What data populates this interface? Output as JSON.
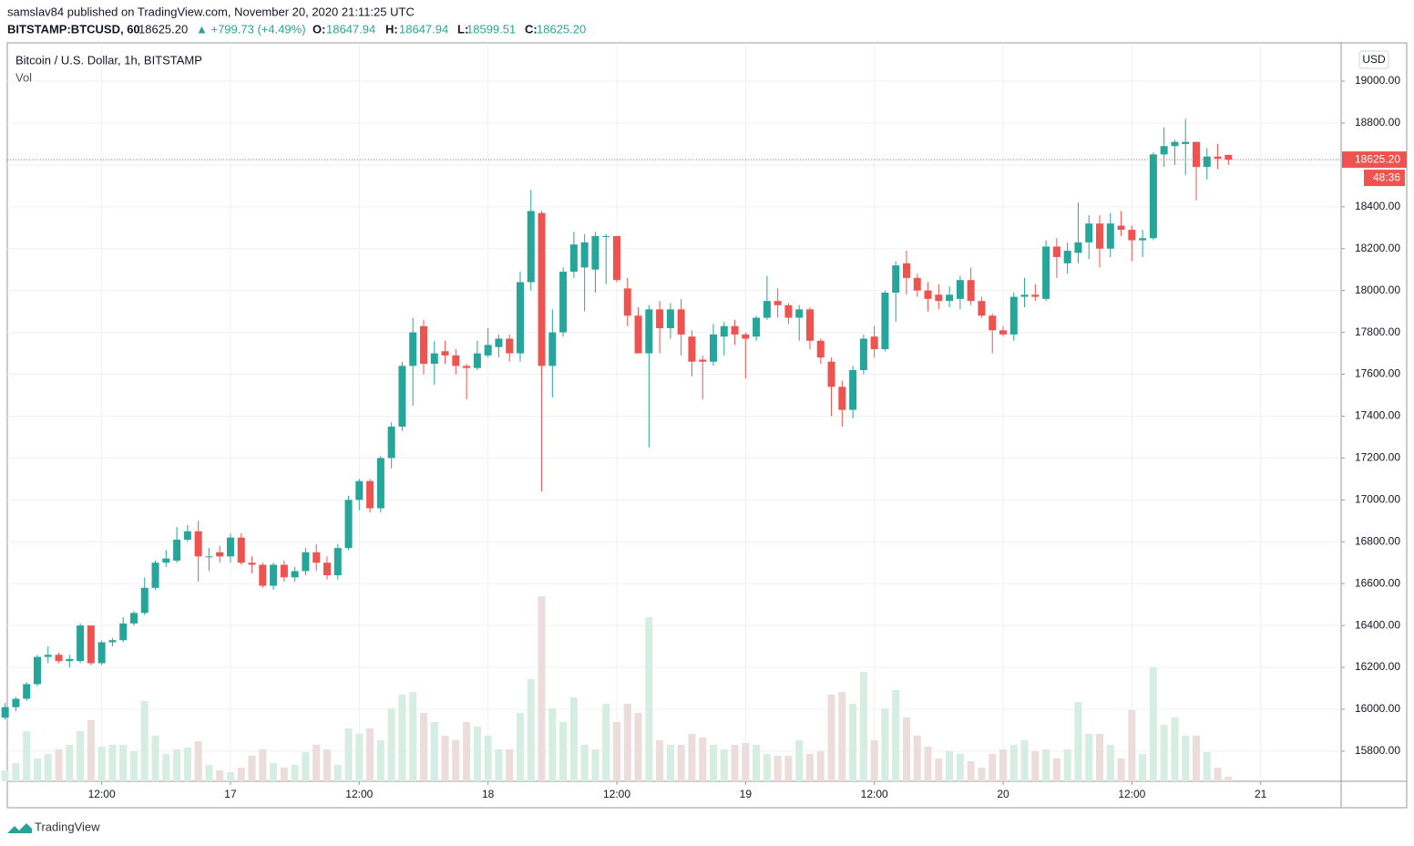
{
  "header": {
    "publisher": "samslav84 published on TradingView.com, November 20, 2020 21:11:25 UTC",
    "symbol": "BITSTAMP:BTCUSD, 60",
    "price": "18625.20",
    "change": "▲ +799.73 (+4.49%)",
    "o_label": "O:",
    "o": "18647.94",
    "h_label": "H:",
    "h": "18647.94",
    "l_label": "L:",
    "l": "18599.51",
    "c_label": "C:",
    "c": "18625.20"
  },
  "legend": {
    "title": "Bitcoin / U.S. Dollar, 1h, BITSTAMP",
    "vol": "Vol",
    "currency": "USD"
  },
  "footer": {
    "brand": "TradingView"
  },
  "chart_data": {
    "type": "candlestick",
    "up_color": "#26a69a",
    "down_color": "#ef5350",
    "volume_up_color": "#d5ede3",
    "volume_down_color": "#eddcdc",
    "grid": true,
    "xlim": [
      0.2,
      124.5
    ],
    "ylim": [
      15656,
      19183
    ],
    "xticks": [
      {
        "value": 9,
        "label": "12:00"
      },
      {
        "value": 21,
        "label": "17"
      },
      {
        "value": 33,
        "label": "12:00"
      },
      {
        "value": 45,
        "label": "18"
      },
      {
        "value": 57,
        "label": "12:00"
      },
      {
        "value": 69,
        "label": "19"
      },
      {
        "value": 81,
        "label": "12:00"
      },
      {
        "value": 93,
        "label": "20"
      },
      {
        "value": 105,
        "label": "12:00"
      },
      {
        "value": 117,
        "label": "21"
      }
    ],
    "yticks": [
      {
        "value": 15800,
        "label": "15800.00"
      },
      {
        "value": 16000,
        "label": "16000.00"
      },
      {
        "value": 16200,
        "label": "16200.00"
      },
      {
        "value": 16400,
        "label": "16400.00"
      },
      {
        "value": 16600,
        "label": "16600.00"
      },
      {
        "value": 16800,
        "label": "16800.00"
      },
      {
        "value": 17000,
        "label": "17000.00"
      },
      {
        "value": 17200,
        "label": "17200.00"
      },
      {
        "value": 17400,
        "label": "17400.00"
      },
      {
        "value": 17600,
        "label": "17600.00"
      },
      {
        "value": 17800,
        "label": "17800.00"
      },
      {
        "value": 18000,
        "label": "18000.00"
      },
      {
        "value": 18200,
        "label": "18200.00"
      },
      {
        "value": 18400,
        "label": "18400.00"
      },
      {
        "value": 18600,
        "label": "18600.00"
      },
      {
        "value": 18800,
        "label": "18800.00"
      },
      {
        "value": 19000,
        "label": "19000.00"
      }
    ],
    "last_price": {
      "value": 18625.2,
      "label": "18625.20",
      "countdown": "48:36"
    },
    "open": [
      15960,
      16010,
      16050,
      16120,
      16250,
      16260,
      16230,
      16230,
      16400,
      16220,
      16320,
      16330,
      16410,
      16460,
      16580,
      16700,
      16710,
      16810,
      16850,
      16730,
      16750,
      16730,
      16820,
      16700,
      16690,
      16590,
      16690,
      16630,
      16660,
      16750,
      16700,
      16640,
      16770,
      17000,
      17090,
      16960,
      17200,
      17350,
      17640,
      17830,
      17650,
      17710,
      17690,
      17640,
      17630,
      17690,
      17730,
      17770,
      17700,
      18040,
      18370,
      17640,
      17800,
      18090,
      18110,
      18100,
      18260,
      18260,
      18010,
      17880,
      17700,
      17910,
      17820,
      17910,
      17780,
      17670,
      17660,
      17780,
      17830,
      17790,
      17780,
      17870,
      17950,
      17930,
      17870,
      17910,
      17760,
      17660,
      17540,
      17430,
      17620,
      17780,
      17720,
      17990,
      18130,
      18060,
      18000,
      17980,
      17950,
      17960,
      18050,
      17950,
      17880,
      17810,
      17790,
      17970,
      17980,
      17960,
      18210,
      18130,
      18180,
      18230,
      18320,
      18200,
      18310,
      18290,
      18240,
      18250,
      18650,
      18690,
      18700,
      18710,
      18590,
      18640,
      18647.94
    ],
    "high": [
      16030,
      16060,
      16130,
      16260,
      16300,
      16270,
      16260,
      16410,
      16400,
      16330,
      16340,
      16440,
      16470,
      16630,
      16710,
      16760,
      16870,
      16880,
      16900,
      16770,
      16780,
      16840,
      16840,
      16730,
      16700,
      16700,
      16710,
      16680,
      16770,
      16790,
      16730,
      16790,
      17020,
      17100,
      17100,
      17210,
      17370,
      17660,
      17870,
      17860,
      17760,
      17760,
      17720,
      17650,
      17760,
      17820,
      17790,
      17790,
      18090,
      18480,
      18380,
      17910,
      18110,
      18280,
      18270,
      18280,
      18270,
      18260,
      18060,
      17920,
      17930,
      17950,
      17940,
      17960,
      17810,
      17690,
      17840,
      17850,
      17860,
      17800,
      17880,
      18070,
      18010,
      17940,
      17930,
      17920,
      17770,
      17680,
      17570,
      17640,
      17790,
      17830,
      18000,
      18140,
      18190,
      18080,
      18040,
      18030,
      18020,
      18070,
      18110,
      17970,
      17890,
      17830,
      17990,
      18060,
      18030,
      18240,
      18250,
      18230,
      18420,
      18360,
      18360,
      18370,
      18380,
      18310,
      18290,
      18660,
      18780,
      18720,
      18820,
      18710,
      18680,
      18700,
      18647.94
    ],
    "low": [
      15950,
      15990,
      16040,
      16110,
      16220,
      16220,
      16200,
      16220,
      16210,
      16210,
      16300,
      16320,
      16400,
      16450,
      16570,
      16680,
      16700,
      16800,
      16610,
      16660,
      16700,
      16700,
      16690,
      16650,
      16580,
      16570,
      16610,
      16610,
      16640,
      16660,
      16620,
      16620,
      16760,
      16950,
      16940,
      16940,
      17150,
      17330,
      17450,
      17600,
      17550,
      17650,
      17600,
      17480,
      17620,
      17680,
      17680,
      17660,
      17660,
      18000,
      17040,
      17490,
      17780,
      18060,
      17900,
      17990,
      18030,
      18040,
      17830,
      17700,
      17250,
      17700,
      17770,
      17690,
      17590,
      17480,
      17640,
      17690,
      17740,
      17580,
      17760,
      17860,
      17870,
      17840,
      17760,
      17720,
      17650,
      17400,
      17350,
      17390,
      17600,
      17680,
      17710,
      17850,
      17980,
      17970,
      17900,
      17910,
      17920,
      17910,
      17930,
      17870,
      17700,
      17780,
      17760,
      17920,
      17950,
      17950,
      18060,
      18080,
      18130,
      18150,
      18110,
      18160,
      18260,
      18140,
      18160,
      18240,
      18590,
      18600,
      18550,
      18430,
      18530,
      18580,
      18599.51
    ],
    "close": [
      16010,
      16050,
      16120,
      16250,
      16260,
      16230,
      16240,
      16400,
      16220,
      16320,
      16330,
      16410,
      16460,
      16580,
      16700,
      16720,
      16810,
      16850,
      16730,
      16730,
      16730,
      16820,
      16700,
      16690,
      16590,
      16690,
      16630,
      16660,
      16750,
      16700,
      16640,
      16770,
      17000,
      17090,
      16960,
      17200,
      17350,
      17640,
      17800,
      17650,
      17700,
      17690,
      17640,
      17630,
      17700,
      17740,
      17770,
      17700,
      18040,
      18380,
      17640,
      17800,
      18090,
      18220,
      18230,
      18260,
      18260,
      18050,
      17880,
      17700,
      17910,
      17820,
      17910,
      17790,
      17660,
      17660,
      17790,
      17830,
      17790,
      17770,
      17870,
      17950,
      17930,
      17870,
      17910,
      17760,
      17680,
      17540,
      17430,
      17620,
      17770,
      17720,
      17990,
      18120,
      18060,
      18000,
      17960,
      17950,
      17980,
      18050,
      17950,
      17880,
      17810,
      17790,
      17970,
      17980,
      17970,
      18210,
      18160,
      18190,
      18230,
      18320,
      18200,
      18320,
      18290,
      18240,
      18250,
      18650,
      18690,
      18710,
      18710,
      18590,
      18640,
      18630,
      18625.2
    ],
    "volume": [
      12,
      20,
      55,
      25,
      30,
      35,
      40,
      55,
      67,
      38,
      40,
      40,
      33,
      88,
      50,
      30,
      35,
      37,
      44,
      18,
      12,
      10,
      15,
      28,
      35,
      20,
      15,
      18,
      32,
      40,
      35,
      18,
      58,
      52,
      58,
      45,
      80,
      95,
      98,
      75,
      65,
      50,
      45,
      65,
      60,
      50,
      35,
      35,
      75,
      112,
      203,
      80,
      65,
      92,
      40,
      35,
      85,
      65,
      85,
      75,
      180,
      45,
      40,
      40,
      52,
      48,
      40,
      35,
      40,
      42,
      40,
      30,
      28,
      28,
      45,
      30,
      33,
      95,
      98,
      85,
      120,
      45,
      80,
      100,
      70,
      50,
      38,
      25,
      33,
      30,
      22,
      15,
      30,
      35,
      40,
      45,
      33,
      35,
      25,
      35,
      87,
      52,
      52,
      40,
      25,
      78,
      30,
      125,
      62,
      70,
      50,
      50,
      32,
      15,
      5
    ]
  }
}
